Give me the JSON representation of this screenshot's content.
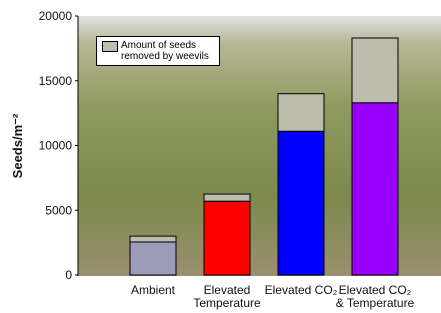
{
  "chart_data": {
    "type": "stacked-bar",
    "y_label": "Seeds/m⁻²",
    "categories": [
      "Ambient",
      "Elevated\nTemperature",
      "Elevated CO₂",
      "Elevated CO₂\n& Temperature"
    ],
    "series": [
      {
        "colors": [
          "#9c9cb8",
          "#ff0000",
          "#0000ff",
          "#9900ff"
        ],
        "values": [
          2550,
          5700,
          11100,
          13300
        ]
      },
      {
        "name": "Amount of seeds removed by weevils",
        "color": "#bdbdad",
        "values": [
          450,
          550,
          2900,
          5000
        ]
      }
    ],
    "ylim": [
      0,
      20000
    ],
    "yticks": [
      0,
      5000,
      10000,
      15000,
      20000
    ]
  }
}
